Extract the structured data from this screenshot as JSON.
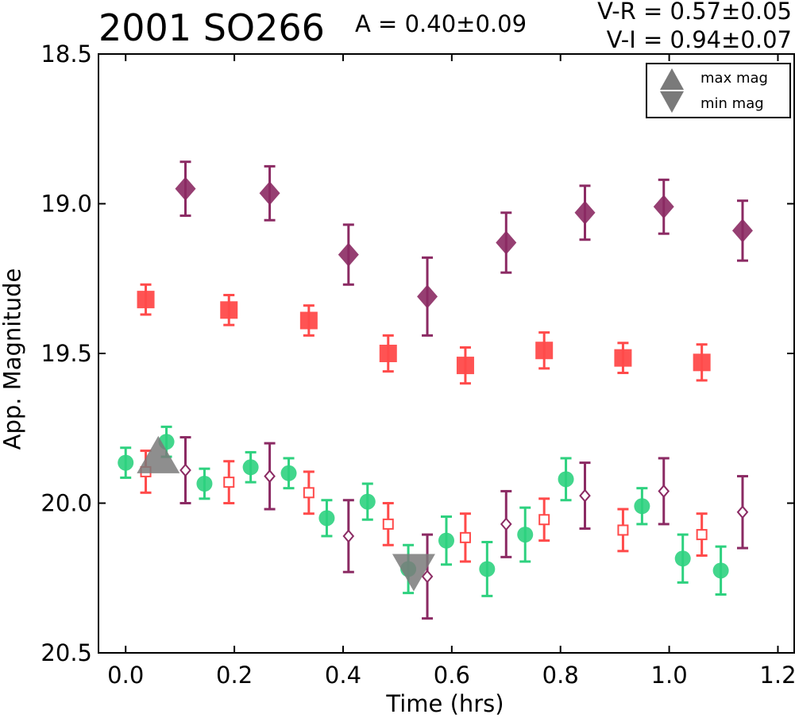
{
  "header": {
    "title": "2001 SO266",
    "amplitude": "A  = 0.40±0.09",
    "color_vr": "V-R = 0.57±0.05",
    "color_vi": "V-I  = 0.94±0.07"
  },
  "chart_data": {
    "type": "scatter",
    "title": "2001 SO266",
    "xlabel": "Time (hrs)",
    "ylabel": "App. Magnitude",
    "xlim": [
      -0.05,
      1.23
    ],
    "ylim": [
      20.5,
      18.5
    ],
    "y_inverted": true,
    "xticks": [
      "0.0",
      "0.2",
      "0.4",
      "0.6",
      "0.8",
      "1.0",
      "1.2"
    ],
    "yticks": [
      "18.5",
      "19.0",
      "19.5",
      "20.0",
      "20.5"
    ],
    "grid": false,
    "legend": {
      "position": "top-right",
      "entries": [
        {
          "label": "max mag",
          "marker": "triangle-up",
          "color": "#7a7a7a"
        },
        {
          "label": "min mag",
          "marker": "triangle-down",
          "color": "#7a7a7a"
        }
      ]
    },
    "series": [
      {
        "marker": "diamond-filled",
        "color": "#8b2a63",
        "points": [
          {
            "x": 0.11,
            "y": 18.95,
            "err": 0.09
          },
          {
            "x": 0.265,
            "y": 18.965,
            "err": 0.09
          },
          {
            "x": 0.41,
            "y": 19.17,
            "err": 0.1
          },
          {
            "x": 0.555,
            "y": 19.31,
            "err": 0.13
          },
          {
            "x": 0.7,
            "y": 19.13,
            "err": 0.1
          },
          {
            "x": 0.845,
            "y": 19.03,
            "err": 0.09
          },
          {
            "x": 0.99,
            "y": 19.01,
            "err": 0.09
          },
          {
            "x": 1.135,
            "y": 19.09,
            "err": 0.1
          }
        ]
      },
      {
        "marker": "square-filled",
        "color": "#ff4a4a",
        "points": [
          {
            "x": 0.037,
            "y": 19.32,
            "err": 0.05
          },
          {
            "x": 0.19,
            "y": 19.355,
            "err": 0.05
          },
          {
            "x": 0.337,
            "y": 19.39,
            "err": 0.05
          },
          {
            "x": 0.483,
            "y": 19.5,
            "err": 0.06
          },
          {
            "x": 0.625,
            "y": 19.54,
            "err": 0.06
          },
          {
            "x": 0.77,
            "y": 19.49,
            "err": 0.06
          },
          {
            "x": 0.915,
            "y": 19.515,
            "err": 0.05
          },
          {
            "x": 1.06,
            "y": 19.53,
            "err": 0.06
          }
        ]
      },
      {
        "marker": "circle-filled",
        "color": "#2ed17f",
        "points": [
          {
            "x": 0.0,
            "y": 19.865,
            "err": 0.05
          },
          {
            "x": 0.075,
            "y": 19.795,
            "err": 0.05
          },
          {
            "x": 0.145,
            "y": 19.935,
            "err": 0.05
          },
          {
            "x": 0.23,
            "y": 19.88,
            "err": 0.05
          },
          {
            "x": 0.3,
            "y": 19.9,
            "err": 0.05
          },
          {
            "x": 0.37,
            "y": 20.05,
            "err": 0.06
          },
          {
            "x": 0.445,
            "y": 19.995,
            "err": 0.06
          },
          {
            "x": 0.52,
            "y": 20.22,
            "err": 0.08
          },
          {
            "x": 0.59,
            "y": 20.125,
            "err": 0.08
          },
          {
            "x": 0.665,
            "y": 20.22,
            "err": 0.09
          },
          {
            "x": 0.735,
            "y": 20.105,
            "err": 0.09
          },
          {
            "x": 0.81,
            "y": 19.92,
            "err": 0.07
          },
          {
            "x": 0.95,
            "y": 20.01,
            "err": 0.06
          },
          {
            "x": 1.025,
            "y": 20.185,
            "err": 0.08
          },
          {
            "x": 1.095,
            "y": 20.225,
            "err": 0.08
          }
        ]
      },
      {
        "marker": "square-open",
        "color": "#ff4a4a",
        "points": [
          {
            "x": 0.037,
            "y": 19.895,
            "err": 0.07
          },
          {
            "x": 0.19,
            "y": 19.93,
            "err": 0.07
          },
          {
            "x": 0.337,
            "y": 19.965,
            "err": 0.07
          },
          {
            "x": 0.483,
            "y": 20.07,
            "err": 0.07
          },
          {
            "x": 0.625,
            "y": 20.115,
            "err": 0.08
          },
          {
            "x": 0.77,
            "y": 20.055,
            "err": 0.07
          },
          {
            "x": 0.915,
            "y": 20.09,
            "err": 0.07
          },
          {
            "x": 1.06,
            "y": 20.105,
            "err": 0.07
          }
        ]
      },
      {
        "marker": "diamond-open",
        "color": "#8b2a63",
        "points": [
          {
            "x": 0.11,
            "y": 19.89,
            "err": 0.11
          },
          {
            "x": 0.265,
            "y": 19.91,
            "err": 0.11
          },
          {
            "x": 0.41,
            "y": 20.11,
            "err": 0.12
          },
          {
            "x": 0.555,
            "y": 20.245,
            "err": 0.14
          },
          {
            "x": 0.7,
            "y": 20.07,
            "err": 0.11
          },
          {
            "x": 0.845,
            "y": 19.975,
            "err": 0.11
          },
          {
            "x": 0.99,
            "y": 19.96,
            "err": 0.11
          },
          {
            "x": 1.135,
            "y": 20.03,
            "err": 0.12
          }
        ]
      }
    ],
    "markers": [
      {
        "label": "max mag",
        "shape": "triangle-up",
        "color": "#7a7a7a",
        "x": 0.06,
        "y": 19.855
      },
      {
        "label": "min mag",
        "shape": "triangle-down",
        "color": "#7a7a7a",
        "x": 0.53,
        "y": 20.215
      }
    ]
  }
}
